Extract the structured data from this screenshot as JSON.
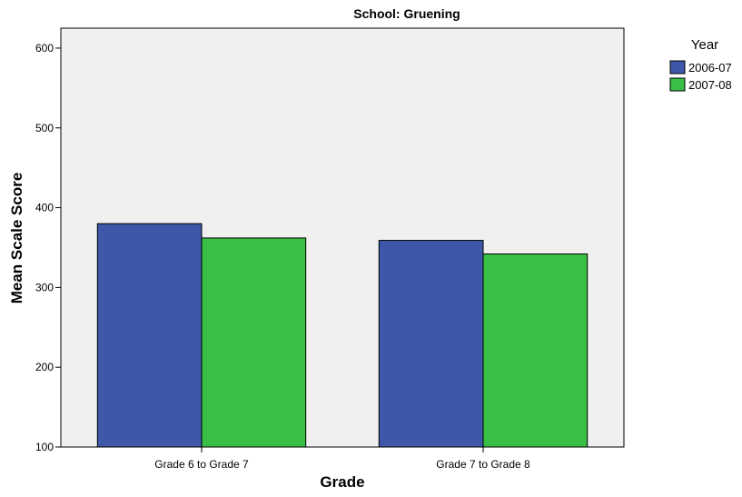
{
  "chart_data": {
    "type": "bar",
    "title": "School: Gruening",
    "xlabel": "Grade",
    "ylabel": "Mean Scale Score",
    "categories": [
      "Grade 6 to Grade 7",
      "Grade 7 to Grade 8"
    ],
    "series": [
      {
        "name": "2006-07",
        "values": [
          380,
          359
        ],
        "color": "#3f57a8"
      },
      {
        "name": "2007-08",
        "values": [
          362,
          342
        ],
        "color": "#39bf45"
      }
    ],
    "ylim": [
      100,
      625
    ],
    "yticks": [
      100,
      200,
      300,
      400,
      500,
      600
    ],
    "legend": {
      "title": "Year",
      "position": "top-right"
    },
    "plot_background": "#f0f0f0",
    "grid": false
  }
}
